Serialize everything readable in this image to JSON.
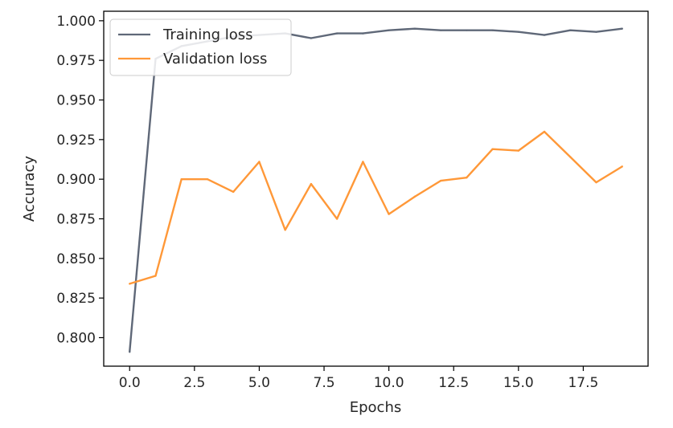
{
  "chart_data": {
    "type": "line",
    "title": "",
    "xlabel": "Epochs",
    "ylabel": "Accuracy",
    "xlim": [
      -1.0,
      20.0
    ],
    "ylim": [
      0.782,
      1.006
    ],
    "xticks": [
      "0.0",
      "2.5",
      "5.0",
      "7.5",
      "10.0",
      "12.5",
      "15.0",
      "17.5"
    ],
    "yticks": [
      "0.800",
      "0.825",
      "0.850",
      "0.875",
      "0.900",
      "0.925",
      "0.950",
      "0.975",
      "1.000"
    ],
    "grid": false,
    "legend_position": "top-left",
    "x": [
      0,
      1,
      2,
      3,
      4,
      5,
      6,
      7,
      8,
      9,
      10,
      11,
      12,
      13,
      14,
      15,
      16,
      17,
      18,
      19
    ],
    "series": [
      {
        "name": "Training loss",
        "color": "#5f6878",
        "values": [
          0.791,
          0.976,
          0.984,
          0.987,
          0.99,
          0.991,
          0.992,
          0.989,
          0.992,
          0.992,
          0.994,
          0.995,
          0.994,
          0.994,
          0.994,
          0.993,
          0.991,
          0.994,
          0.993,
          0.995
        ]
      },
      {
        "name": "Validation loss",
        "color": "#ff9838",
        "values": [
          0.834,
          0.839,
          0.9,
          0.9,
          0.892,
          0.911,
          0.868,
          0.897,
          0.875,
          0.911,
          0.878,
          0.889,
          0.899,
          0.901,
          0.919,
          0.918,
          0.93,
          0.914,
          0.898,
          0.908
        ]
      }
    ]
  }
}
